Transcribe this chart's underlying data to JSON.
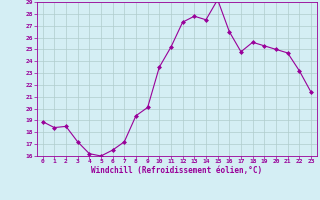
{
  "x": [
    0,
    1,
    2,
    3,
    4,
    5,
    6,
    7,
    8,
    9,
    10,
    11,
    12,
    13,
    14,
    15,
    16,
    17,
    18,
    19,
    20,
    21,
    22,
    23
  ],
  "y": [
    18.9,
    18.4,
    18.5,
    17.2,
    16.2,
    16.0,
    16.5,
    17.2,
    19.4,
    20.1,
    23.5,
    25.2,
    27.3,
    27.8,
    27.5,
    29.2,
    26.5,
    24.8,
    25.6,
    25.3,
    25.0,
    24.7,
    23.2,
    21.4
  ],
  "line_color": "#990099",
  "marker": "D",
  "marker_size": 2,
  "bg_color": "#d4eef4",
  "grid_color": "#b0cccc",
  "xlabel": "Windchill (Refroidissement éolien,°C)",
  "xlabel_color": "#990099",
  "tick_color": "#990099",
  "ylim": [
    16,
    29
  ],
  "xlim": [
    -0.5,
    23.5
  ],
  "yticks": [
    16,
    17,
    18,
    19,
    20,
    21,
    22,
    23,
    24,
    25,
    26,
    27,
    28,
    29
  ],
  "xticks": [
    0,
    1,
    2,
    3,
    4,
    5,
    6,
    7,
    8,
    9,
    10,
    11,
    12,
    13,
    14,
    15,
    16,
    17,
    18,
    19,
    20,
    21,
    22,
    23
  ]
}
